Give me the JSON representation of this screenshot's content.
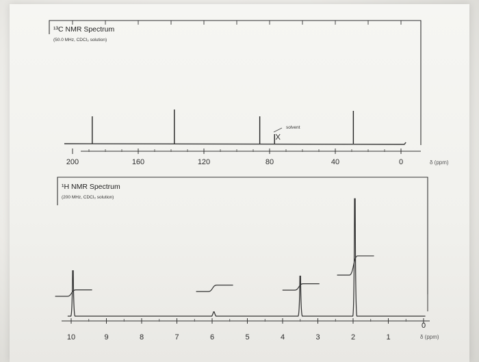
{
  "chart_data": [
    {
      "type": "line",
      "title": "¹³C NMR Spectrum",
      "subtitle": "(50.0 MHz, CDCl₃ solution)",
      "xlabel": "δ (ppm)",
      "xlim": [
        215,
        -5
      ],
      "ticks": [
        200,
        160,
        120,
        80,
        40,
        0
      ],
      "tick_labels": [
        "200",
        "160",
        "120",
        "80",
        "40",
        "0"
      ],
      "peaks": [
        {
          "x": 188,
          "height": 1.0
        },
        {
          "x": 138,
          "height": 1.25
        },
        {
          "x": 86,
          "height": 1.0
        },
        {
          "x": 77,
          "height": 0.35
        },
        {
          "x": 29,
          "height": 1.2
        }
      ],
      "annotation": {
        "text": "solvent",
        "x": 77
      }
    },
    {
      "type": "line",
      "title": "¹H NMR Spectrum",
      "subtitle": "(200 MHz, CDCl₃ solution)",
      "xlabel": "δ (ppm)",
      "xlim": [
        10.2,
        -0.1
      ],
      "ticks": [
        10,
        9,
        8,
        7,
        6,
        5,
        4,
        3,
        2,
        1,
        0
      ],
      "tick_labels": [
        "10",
        "9",
        "8",
        "7",
        "6",
        "5",
        "4",
        "3",
        "2",
        "1",
        "0"
      ],
      "peaks": [
        {
          "x": 9.95,
          "height": 0.85
        },
        {
          "x": 5.95,
          "height": 0.08
        },
        {
          "x": 3.5,
          "height": 0.75
        },
        {
          "x": 1.95,
          "height": 2.2
        }
      ],
      "integrals": [
        {
          "x": 9.95,
          "rise": 0.12
        },
        {
          "x": 5.95,
          "rise": 0.12
        },
        {
          "x": 3.5,
          "rise": 0.12
        },
        {
          "x": 1.95,
          "rise": 0.36
        }
      ]
    }
  ]
}
